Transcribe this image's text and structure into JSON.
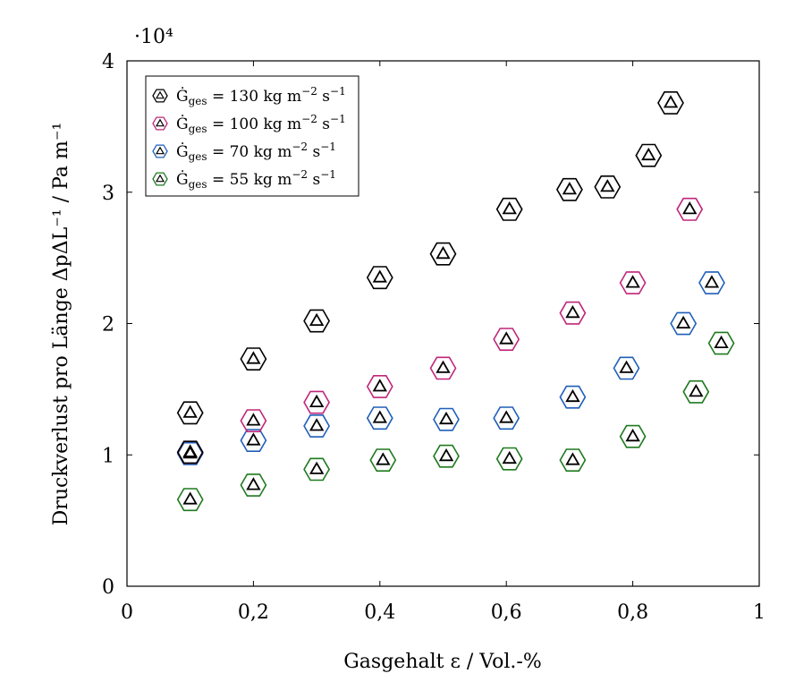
{
  "chart_data": {
    "type": "scatter",
    "xlabel": "Gasgehalt ε / Vol.-%",
    "ylabel": "Druckverlust pro Länge ΔpΔL⁻¹ / Pa m⁻¹",
    "y_scale_note": "·10⁴",
    "xlim": [
      0,
      1
    ],
    "ylim": [
      0,
      40000
    ],
    "x_ticks": [
      0,
      0.2,
      0.4,
      0.6,
      0.8,
      1
    ],
    "x_tick_labels": [
      "0",
      "0,2",
      "0,4",
      "0,6",
      "0,8",
      "1"
    ],
    "y_ticks": [
      0,
      10000,
      20000,
      30000,
      40000
    ],
    "y_tick_labels": [
      "0",
      "1",
      "2",
      "3",
      "4"
    ],
    "grid": false,
    "legend_position": "top-left",
    "series": [
      {
        "name": "Ġges = 130 kg m⁻² s⁻¹",
        "label_value": "130",
        "color": "#000000",
        "points": [
          [
            0.1,
            13200
          ],
          [
            0.2,
            17300
          ],
          [
            0.3,
            20200
          ],
          [
            0.4,
            23500
          ],
          [
            0.5,
            25300
          ],
          [
            0.605,
            28700
          ],
          [
            0.7,
            30200
          ],
          [
            0.76,
            30400
          ],
          [
            0.825,
            32800
          ],
          [
            0.86,
            36800
          ],
          [
            0.1,
            10200
          ]
        ]
      },
      {
        "name": "Ġges = 100 kg m⁻² s⁻¹",
        "label_value": "100",
        "color": "#c0267a",
        "points": [
          [
            0.1,
            10200
          ],
          [
            0.2,
            12600
          ],
          [
            0.3,
            14000
          ],
          [
            0.4,
            15200
          ],
          [
            0.5,
            16600
          ],
          [
            0.6,
            18800
          ],
          [
            0.705,
            20800
          ],
          [
            0.8,
            23100
          ],
          [
            0.89,
            28700
          ]
        ]
      },
      {
        "name": "Ġges = 70 kg m⁻² s⁻¹",
        "label_value": "70",
        "color": "#1f5fb8",
        "points": [
          [
            0.1,
            10100
          ],
          [
            0.2,
            11100
          ],
          [
            0.3,
            12200
          ],
          [
            0.4,
            12800
          ],
          [
            0.505,
            12700
          ],
          [
            0.6,
            12800
          ],
          [
            0.705,
            14400
          ],
          [
            0.79,
            16600
          ],
          [
            0.88,
            20000
          ],
          [
            0.925,
            23100
          ]
        ]
      },
      {
        "name": "Ġges = 55 kg m⁻² s⁻¹",
        "label_value": "55",
        "color": "#1e7a1e",
        "points": [
          [
            0.1,
            6600
          ],
          [
            0.2,
            7700
          ],
          [
            0.3,
            8900
          ],
          [
            0.405,
            9600
          ],
          [
            0.505,
            9900
          ],
          [
            0.605,
            9700
          ],
          [
            0.705,
            9600
          ],
          [
            0.8,
            11400
          ],
          [
            0.9,
            14800
          ],
          [
            0.94,
            18500
          ]
        ]
      }
    ]
  }
}
